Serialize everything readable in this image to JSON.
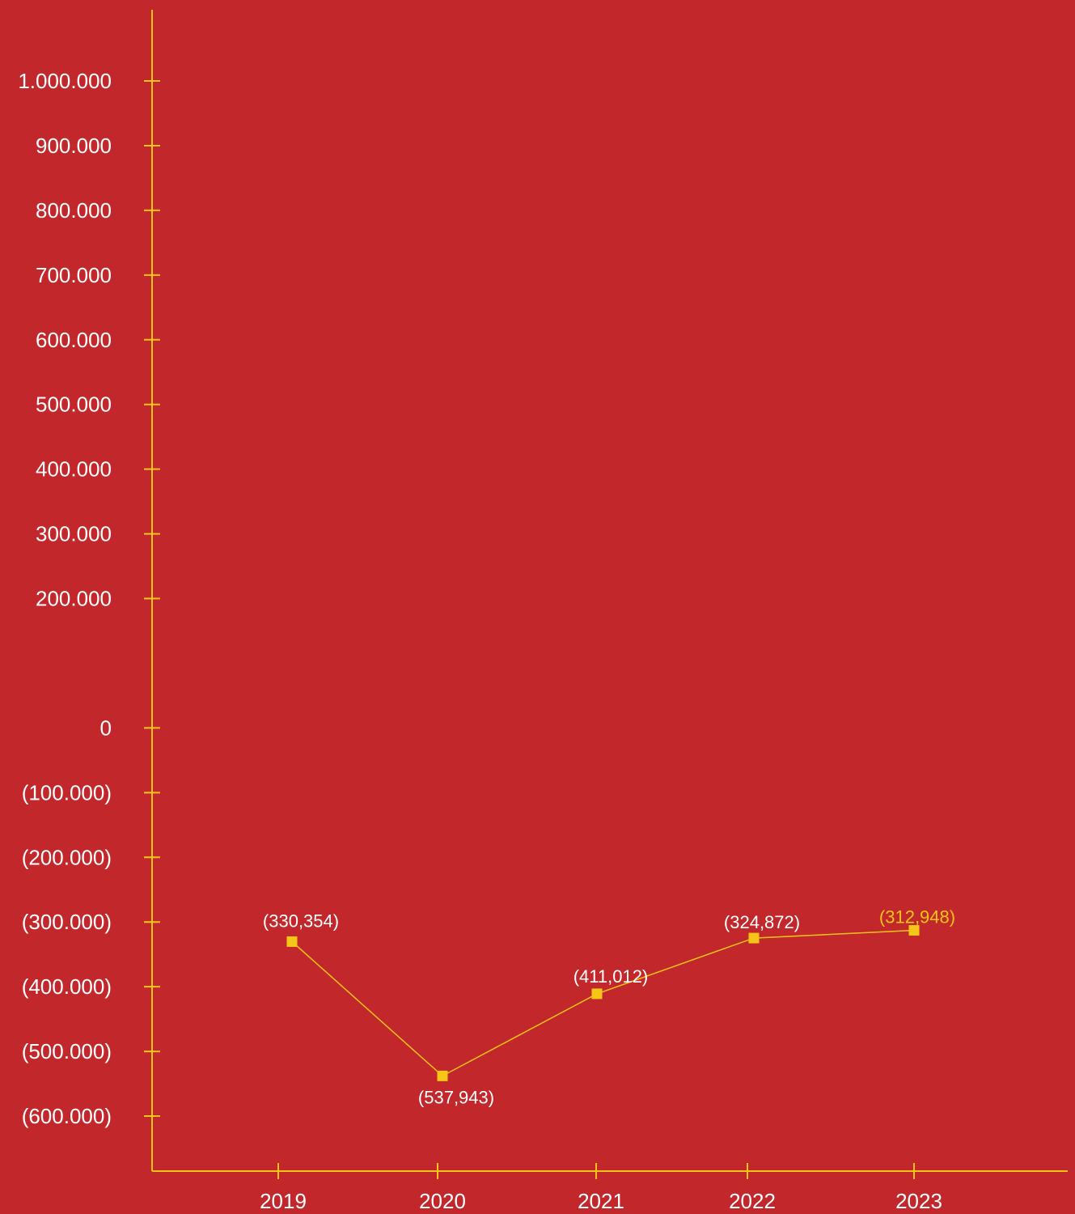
{
  "colors": {
    "background": "#c1272b",
    "axis": "#f5c518",
    "series": "#f5c518",
    "text": "#ffffff",
    "highlight_label": "#f5c518"
  },
  "chart_data": {
    "type": "line",
    "title": "",
    "xlabel": "",
    "ylabel": "",
    "categories": [
      "2019",
      "2020",
      "2021",
      "2022",
      "2023"
    ],
    "series": [
      {
        "values": [
          -330354,
          -537943,
          -411012,
          -324872,
          -312948
        ],
        "labels": [
          "(330,354)",
          "(537,943)",
          "(411,012)",
          "(324,872)",
          "(312,948)"
        ],
        "marker": "square"
      }
    ],
    "ylim": [
      -600000,
      1000000
    ],
    "y_ticks": [
      1000000,
      900000,
      800000,
      700000,
      600000,
      500000,
      400000,
      300000,
      200000,
      0,
      -100000,
      -200000,
      -300000,
      -400000,
      -500000,
      -600000
    ],
    "y_tick_labels": [
      "1.000.000",
      "900.000",
      "800.000",
      "700.000",
      "600.000",
      "500.000",
      "400.000",
      "300.000",
      "200.000",
      "0",
      "(100.000)",
      "(200.000)",
      "(300.000)",
      "(400.000)",
      "(500.000)",
      "(600.000)"
    ],
    "grid": false,
    "legend": "none"
  }
}
